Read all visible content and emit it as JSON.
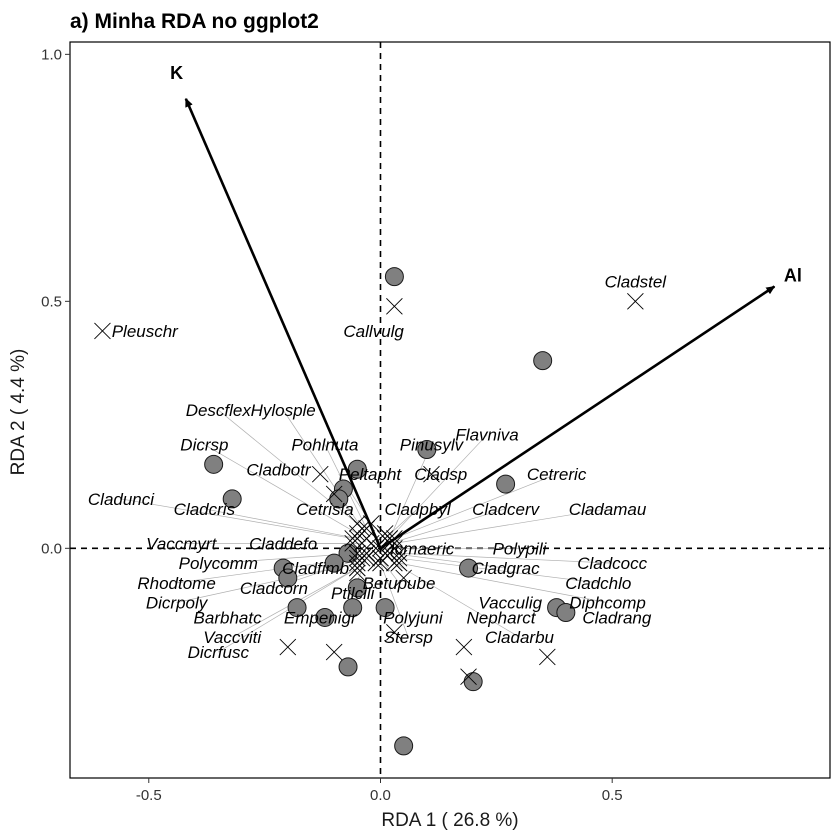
{
  "chart_data": {
    "type": "scatter",
    "title": "a) Minha RDA no ggplot2",
    "xlabel": "RDA 1  ( 26.8 %)",
    "ylabel": "RDA 2  ( 4.4 %)",
    "xlim": [
      -0.67,
      0.97
    ],
    "ylim": [
      -0.465,
      1.025
    ],
    "x_ticks": [
      -0.5,
      0.0,
      0.5
    ],
    "x_tick_labels": [
      "-0.5",
      "0.0",
      "0.5"
    ],
    "y_ticks": [
      0.0,
      0.5,
      1.0
    ],
    "y_tick_labels": [
      "0.0",
      "0.5",
      "1.0"
    ],
    "grid": false,
    "reference_lines": {
      "x": 0,
      "y": 0,
      "style": "dashed"
    },
    "sites": [
      [
        0.03,
        0.55
      ],
      [
        0.35,
        0.38
      ],
      [
        -0.36,
        0.17
      ],
      [
        -0.32,
        0.1
      ],
      [
        0.1,
        0.2
      ],
      [
        0.27,
        0.13
      ],
      [
        -0.05,
        0.16
      ],
      [
        -0.08,
        0.12
      ],
      [
        -0.09,
        0.1
      ],
      [
        -0.07,
        -0.01
      ],
      [
        -0.21,
        -0.04
      ],
      [
        -0.2,
        -0.06
      ],
      [
        -0.1,
        -0.03
      ],
      [
        -0.05,
        -0.08
      ],
      [
        0.19,
        -0.04
      ],
      [
        0.01,
        -0.12
      ],
      [
        -0.06,
        -0.12
      ],
      [
        -0.12,
        -0.14
      ],
      [
        -0.18,
        -0.12
      ],
      [
        0.38,
        -0.12
      ],
      [
        0.4,
        -0.13
      ],
      [
        -0.07,
        -0.24
      ],
      [
        0.2,
        -0.27
      ],
      [
        0.05,
        -0.4
      ]
    ],
    "species": [
      {
        "name": "Cladstel",
        "x": 0.55,
        "y": 0.5,
        "lx": 0.55,
        "ly": 0.54,
        "anchor": "middle",
        "line": false
      },
      {
        "name": "Pleuschr",
        "x": -0.6,
        "y": 0.44,
        "lx": -0.58,
        "ly": 0.44,
        "anchor": "start",
        "line": false
      },
      {
        "name": "Callvulg",
        "x": 0.03,
        "y": 0.49,
        "lx": -0.08,
        "ly": 0.44,
        "anchor": "start",
        "line": false
      },
      {
        "name": "Descflex",
        "x": -0.05,
        "y": 0.05,
        "lx": -0.35,
        "ly": 0.28,
        "anchor": "middle",
        "line": true
      },
      {
        "name": "Hylosple",
        "x": -0.04,
        "y": 0.04,
        "lx": -0.21,
        "ly": 0.28,
        "anchor": "middle",
        "line": true
      },
      {
        "name": "Dicrsp",
        "x": -0.05,
        "y": 0.03,
        "lx": -0.38,
        "ly": 0.21,
        "anchor": "middle",
        "line": true
      },
      {
        "name": "Pohlnuta",
        "x": -0.03,
        "y": 0.04,
        "lx": -0.12,
        "ly": 0.21,
        "anchor": "middle",
        "line": true
      },
      {
        "name": "Pinusylv",
        "x": 0.02,
        "y": 0.02,
        "lx": 0.11,
        "ly": 0.21,
        "anchor": "middle",
        "line": true
      },
      {
        "name": "Flavniva",
        "x": 0.02,
        "y": 0.02,
        "lx": 0.23,
        "ly": 0.23,
        "anchor": "middle",
        "line": true
      },
      {
        "name": "Cladbotr",
        "x": -0.13,
        "y": 0.15,
        "lx": -0.22,
        "ly": 0.16,
        "anchor": "middle",
        "line": false
      },
      {
        "name": "Peltapht",
        "x": -0.02,
        "y": 0.05,
        "lx": -0.09,
        "ly": 0.15,
        "anchor": "start",
        "line": true
      },
      {
        "name": "Cladsp",
        "x": 0.11,
        "y": 0.15,
        "lx": 0.13,
        "ly": 0.15,
        "anchor": "middle",
        "line": false
      },
      {
        "name": "Cetreric",
        "x": 0.03,
        "y": 0.02,
        "lx": 0.38,
        "ly": 0.15,
        "anchor": "middle",
        "line": true
      },
      {
        "name": "Cladunci",
        "x": -0.06,
        "y": 0.02,
        "lx": -0.56,
        "ly": 0.1,
        "anchor": "middle",
        "line": true
      },
      {
        "name": "Cladcris",
        "x": -0.05,
        "y": 0.02,
        "lx": -0.38,
        "ly": 0.08,
        "anchor": "middle",
        "line": true
      },
      {
        "name": "Cetrisla",
        "x": -0.1,
        "y": 0.11,
        "lx": -0.12,
        "ly": 0.08,
        "anchor": "middle",
        "line": false
      },
      {
        "name": "Cladpbyl",
        "x": 0.01,
        "y": 0.02,
        "lx": 0.08,
        "ly": 0.08,
        "anchor": "middle",
        "line": true
      },
      {
        "name": "Cladcerv",
        "x": 0.02,
        "y": 0.01,
        "lx": 0.27,
        "ly": 0.08,
        "anchor": "middle",
        "line": true
      },
      {
        "name": "Cladamau",
        "x": 0.03,
        "y": 0.01,
        "lx": 0.49,
        "ly": 0.08,
        "anchor": "middle",
        "line": true
      },
      {
        "name": "Vaccmyrt",
        "x": -0.06,
        "y": 0.01,
        "lx": -0.43,
        "ly": 0.01,
        "anchor": "middle",
        "line": true
      },
      {
        "name": "Claddefo",
        "x": -0.04,
        "y": 0.01,
        "lx": -0.21,
        "ly": 0.01,
        "anchor": "middle",
        "line": true
      },
      {
        "name": "Icmaeric",
        "x": 0.0,
        "y": 0.0,
        "lx": 0.09,
        "ly": 0.0,
        "anchor": "middle",
        "line": true
      },
      {
        "name": "Polypili",
        "x": 0.03,
        "y": 0.0,
        "lx": 0.3,
        "ly": 0.0,
        "anchor": "middle",
        "line": true
      },
      {
        "name": "Polycomm",
        "x": -0.05,
        "y": -0.01,
        "lx": -0.35,
        "ly": -0.03,
        "anchor": "middle",
        "line": true
      },
      {
        "name": "Cladfimb",
        "x": -0.03,
        "y": -0.01,
        "lx": -0.14,
        "ly": -0.04,
        "anchor": "middle",
        "line": true
      },
      {
        "name": "Cladgrac",
        "x": 0.02,
        "y": -0.01,
        "lx": 0.27,
        "ly": -0.04,
        "anchor": "middle",
        "line": true
      },
      {
        "name": "Cladcocc",
        "x": 0.04,
        "y": -0.01,
        "lx": 0.5,
        "ly": -0.03,
        "anchor": "middle",
        "line": true
      },
      {
        "name": "Rhodtome",
        "x": -0.05,
        "y": -0.02,
        "lx": -0.44,
        "ly": -0.07,
        "anchor": "middle",
        "line": true
      },
      {
        "name": "Cladcorn",
        "x": -0.04,
        "y": -0.02,
        "lx": -0.23,
        "ly": -0.08,
        "anchor": "middle",
        "line": true
      },
      {
        "name": "Betupube",
        "x": 0.0,
        "y": -0.02,
        "lx": 0.04,
        "ly": -0.07,
        "anchor": "middle",
        "line": true
      },
      {
        "name": "Cladchlo",
        "x": 0.04,
        "y": -0.02,
        "lx": 0.47,
        "ly": -0.07,
        "anchor": "middle",
        "line": true
      },
      {
        "name": "Ptilcili",
        "x": -0.03,
        "y": -0.02,
        "lx": -0.06,
        "ly": -0.09,
        "anchor": "middle",
        "line": true
      },
      {
        "name": "Dicrpoly",
        "x": -0.05,
        "y": -0.03,
        "lx": -0.44,
        "ly": -0.11,
        "anchor": "middle",
        "line": true
      },
      {
        "name": "Vacculig",
        "x": 0.18,
        "y": -0.2,
        "lx": 0.28,
        "ly": -0.11,
        "anchor": "middle",
        "line": false
      },
      {
        "name": "Diphcomp",
        "x": 0.04,
        "y": -0.03,
        "lx": 0.49,
        "ly": -0.11,
        "anchor": "middle",
        "line": true
      },
      {
        "name": "Barbhatc",
        "x": -0.2,
        "y": -0.2,
        "lx": -0.33,
        "ly": -0.14,
        "anchor": "middle",
        "line": false
      },
      {
        "name": "Empenigr",
        "x": -0.1,
        "y": -0.21,
        "lx": -0.13,
        "ly": -0.14,
        "anchor": "middle",
        "line": false
      },
      {
        "name": "Polyjuni",
        "x": 0.03,
        "y": -0.17,
        "lx": 0.07,
        "ly": -0.14,
        "anchor": "middle",
        "line": false
      },
      {
        "name": "Nepharct",
        "x": 0.19,
        "y": -0.26,
        "lx": 0.26,
        "ly": -0.14,
        "anchor": "middle",
        "line": false
      },
      {
        "name": "Cladrang",
        "x": 0.36,
        "y": -0.22,
        "lx": 0.51,
        "ly": -0.14,
        "anchor": "middle",
        "line": false
      },
      {
        "name": "Vaccviti",
        "x": -0.05,
        "y": -0.04,
        "lx": -0.32,
        "ly": -0.18,
        "anchor": "middle",
        "line": true
      },
      {
        "name": "Cladarbu",
        "x": 0.03,
        "y": -0.03,
        "lx": 0.3,
        "ly": -0.18,
        "anchor": "middle",
        "line": true
      },
      {
        "name": "Stersp",
        "x": 0.0,
        "y": -0.03,
        "lx": 0.06,
        "ly": -0.18,
        "anchor": "middle",
        "line": true
      },
      {
        "name": "Dicrfusc",
        "x": -0.05,
        "y": -0.04,
        "lx": -0.35,
        "ly": -0.21,
        "anchor": "middle",
        "line": true
      },
      {
        "name": "",
        "x": -0.01,
        "y": 0.0,
        "lx": 0,
        "ly": 0,
        "anchor": "middle",
        "line": false
      },
      {
        "name": "",
        "x": 0.01,
        "y": -0.01,
        "lx": 0,
        "ly": 0,
        "anchor": "middle",
        "line": false
      },
      {
        "name": "",
        "x": -0.02,
        "y": 0.01,
        "lx": 0,
        "ly": 0,
        "anchor": "middle",
        "line": false
      },
      {
        "name": "",
        "x": 0.02,
        "y": 0.01,
        "lx": 0,
        "ly": 0,
        "anchor": "middle",
        "line": false
      },
      {
        "name": "",
        "x": 0.0,
        "y": -0.02,
        "lx": 0,
        "ly": 0,
        "anchor": "middle",
        "line": false
      },
      {
        "name": "",
        "x": -0.01,
        "y": -0.03,
        "lx": 0,
        "ly": 0,
        "anchor": "middle",
        "line": false
      },
      {
        "name": "",
        "x": 0.05,
        "y": -0.06,
        "lx": 0,
        "ly": 0,
        "anchor": "middle",
        "line": false
      },
      {
        "name": "",
        "x": -0.05,
        "y": -0.05,
        "lx": 0,
        "ly": 0,
        "anchor": "middle",
        "line": false
      },
      {
        "name": "",
        "x": 0.01,
        "y": 0.03,
        "lx": 0,
        "ly": 0,
        "anchor": "middle",
        "line": false
      },
      {
        "name": "",
        "x": -0.03,
        "y": 0.02,
        "lx": 0,
        "ly": 0,
        "anchor": "middle",
        "line": false
      }
    ],
    "arrows": [
      {
        "name": "K",
        "x": -0.42,
        "y": 0.91,
        "lx": -0.44,
        "ly": 0.95
      },
      {
        "name": "Al",
        "x": 0.85,
        "y": 0.53,
        "lx": 0.89,
        "ly": 0.54
      }
    ],
    "colors": {
      "site_fill": "#808080",
      "site_stroke": "#1a1a1a",
      "species_marker": "#000000",
      "leader_line": "#b0b0b0",
      "arrow": "#000000",
      "frame": "#000000"
    }
  }
}
